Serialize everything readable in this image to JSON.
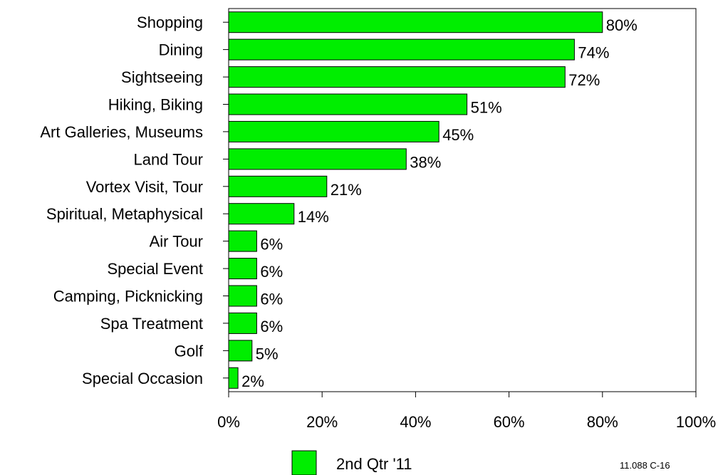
{
  "chart_data": {
    "type": "bar",
    "orientation": "horizontal",
    "categories": [
      "Shopping",
      "Dining",
      "Sightseeing",
      "Hiking, Biking",
      "Art Galleries, Museums",
      "Land Tour",
      "Vortex Visit, Tour",
      "Spiritual, Metaphysical",
      "Air Tour",
      "Special Event",
      "Camping, Picknicking",
      "Spa Treatment",
      "Golf",
      "Special Occasion"
    ],
    "series": [
      {
        "name": "2nd Qtr '11",
        "values": [
          80,
          74,
          72,
          51,
          45,
          38,
          21,
          14,
          6,
          6,
          6,
          6,
          5,
          2
        ],
        "labels": [
          "80%",
          "74%",
          "72%",
          "51%",
          "45%",
          "38%",
          "21%",
          "14%",
          "6%",
          "6%",
          "6%",
          "6%",
          "5%",
          "2%"
        ],
        "color": "#00ee00"
      }
    ],
    "xlim": [
      0,
      100
    ],
    "xticks": [
      0,
      20,
      40,
      60,
      80,
      100
    ],
    "xtick_labels": [
      "0%",
      "20%",
      "40%",
      "60%",
      "80%",
      "100%"
    ],
    "grid": false,
    "legend_position": "bottom-center"
  },
  "footer_code": "11.088 C-16"
}
